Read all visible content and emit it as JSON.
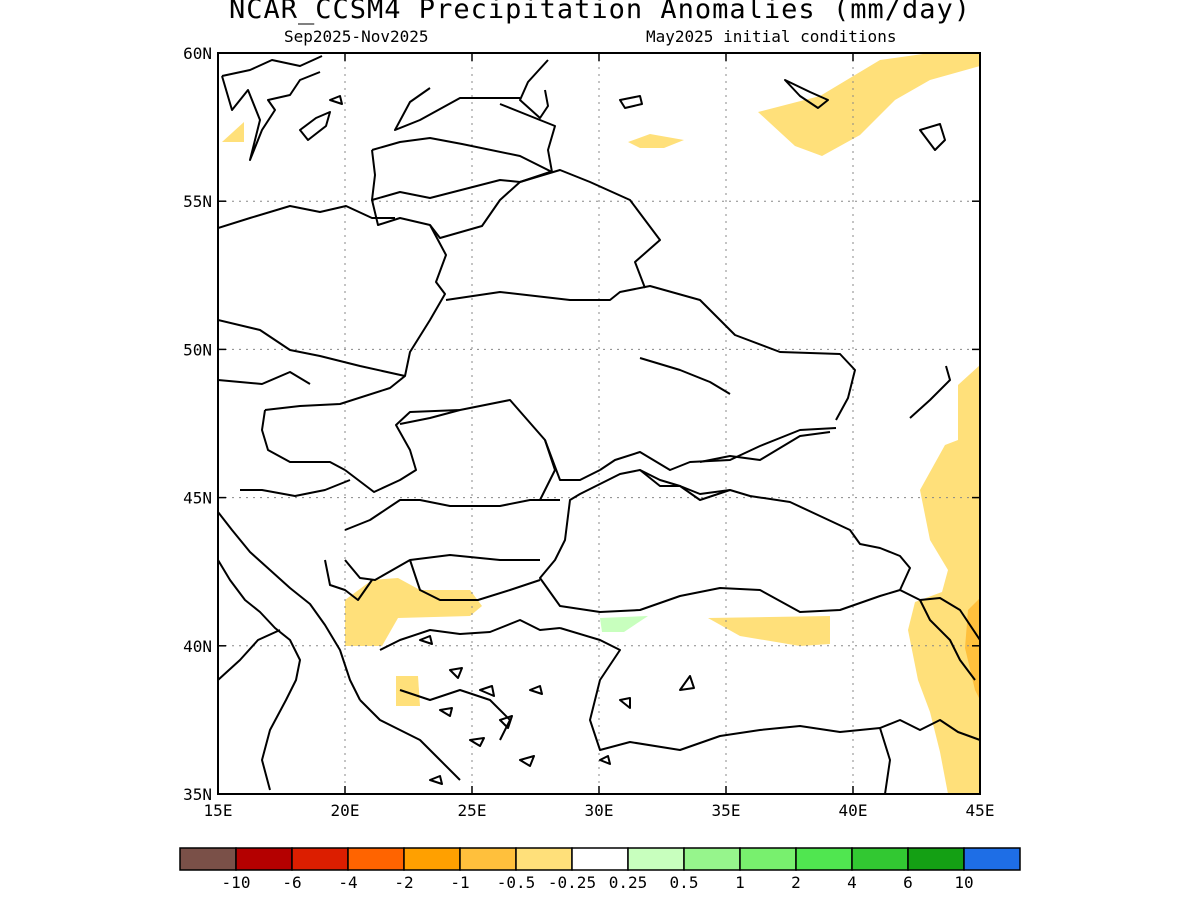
{
  "title": "NCAR_CCSM4 Precipitation Anomalies (mm/day)",
  "subtitle_left": "Sep2025-Nov2025",
  "subtitle_right": "May2025 initial conditions",
  "map": {
    "lon_range": [
      15,
      45
    ],
    "lat_range": [
      35,
      60
    ],
    "lon_ticks": [
      "15E",
      "20E",
      "25E",
      "30E",
      "35E",
      "40E",
      "45E"
    ],
    "lat_ticks": [
      "35N",
      "40N",
      "45N",
      "50N",
      "55N",
      "60N"
    ],
    "grid": "dotted"
  },
  "colorbar": {
    "colors": [
      "#7a5048",
      "#b40000",
      "#dc1e00",
      "#ff6400",
      "#ffa000",
      "#ffc03c",
      "#ffe07a",
      "#ffffff",
      "#c8ffbe",
      "#96f58c",
      "#78f06e",
      "#50e650",
      "#32c832",
      "#14a014",
      "#1e6ee6"
    ],
    "labels": [
      "-10",
      "-6",
      "-4",
      "-2",
      "-1",
      "-0.5",
      "-0.25",
      "0.25",
      "0.5",
      "1",
      "2",
      "4",
      "6",
      "10"
    ]
  },
  "anomaly_fills": [
    {
      "level": "-0.5 to -0.25",
      "color": "#ffe07a"
    },
    {
      "level": "-1 to -0.5",
      "color": "#ffc03c"
    },
    {
      "level": "0.25 to 0.5",
      "color": "#c8ffbe"
    }
  ]
}
